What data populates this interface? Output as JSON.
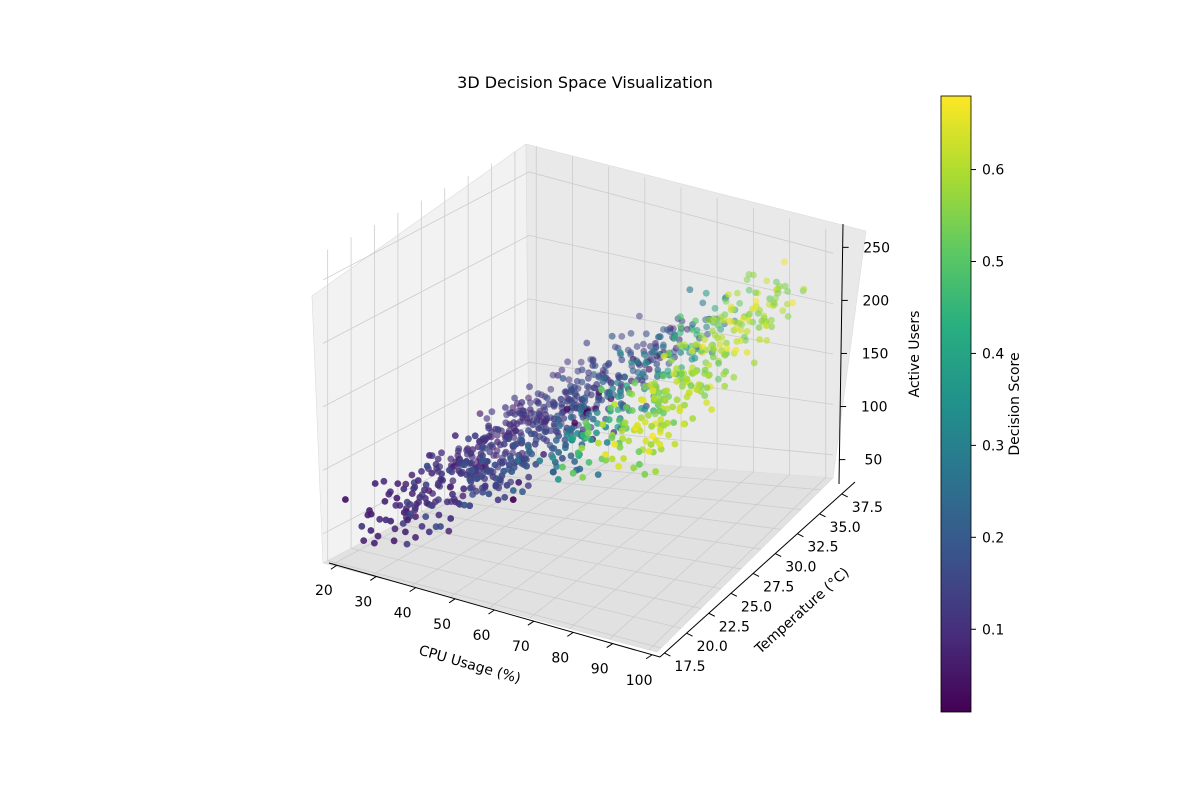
{
  "chart_data": {
    "type": "scatter",
    "projection": "3d",
    "title": "3D Decision Space Visualization",
    "xlabel": "CPU Usage (%)",
    "ylabel": "Temperature (°C)",
    "zlabel": "Active Users",
    "xlim": [
      18,
      102
    ],
    "ylim": [
      17,
      39
    ],
    "zlim": [
      27,
      272
    ],
    "xticks": [
      "20",
      "30",
      "40",
      "50",
      "60",
      "70",
      "80",
      "90",
      "100"
    ],
    "yticks": [
      "17.5",
      "20.0",
      "22.5",
      "25.0",
      "27.5",
      "30.0",
      "32.5",
      "35.0",
      "37.5"
    ],
    "zticks": [
      "50",
      "100",
      "150",
      "200",
      "250"
    ],
    "grid": true,
    "colormap": "viridis",
    "colorbar": {
      "label": "Decision Score",
      "range": [
        0.01,
        0.68
      ],
      "ticks": [
        "0.1",
        "0.2",
        "0.3",
        "0.4",
        "0.5",
        "0.6"
      ]
    },
    "point_count": 1000,
    "points_note": "Cloud of ~1000 points: CPU usage 20–100 %, temperature 18–38 °C, active users roughly 2.2×CPU + 0.8×(temp−28) ± 15; decision score rises with CPU and users (about 0.05 at low CPU to about 0.65 near 100 % CPU)."
  }
}
